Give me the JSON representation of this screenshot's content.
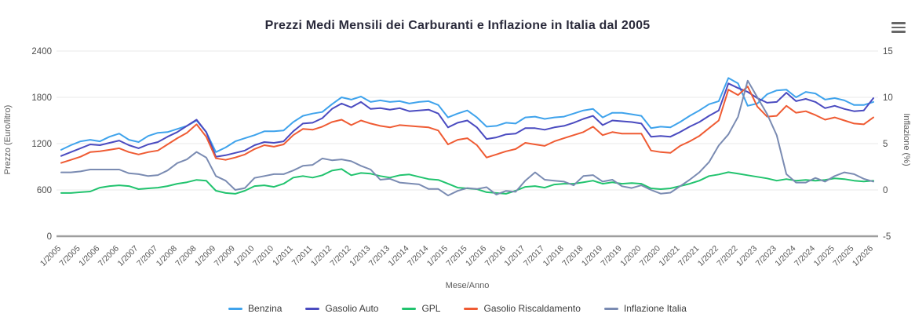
{
  "header": {
    "title": "Prezzi Medi Mensili dei Carburanti e Inflazione in Italia dal 2005",
    "menu_icon": "hamburger-icon"
  },
  "chart_data": {
    "type": "line",
    "title": "Prezzi Medi Mensili dei Carburanti e Inflazione in Italia dal 2005",
    "grid": true,
    "legend_position": "bottom",
    "x_axis": {
      "title": "Mese/Anno",
      "tick_labels": [
        "1/2005",
        "7/2005",
        "1/2006",
        "7/2006",
        "1/2007",
        "7/2007",
        "1/2008",
        "7/2008",
        "1/2009",
        "7/2009",
        "1/2010",
        "7/2010",
        "1/2011",
        "7/2011",
        "1/2012",
        "7/2012",
        "1/2013",
        "7/2013",
        "1/2014",
        "7/2014",
        "1/2015",
        "7/2015",
        "1/2016",
        "7/2016",
        "1/2017",
        "7/2017",
        "1/2018",
        "7/2018",
        "1/2019",
        "7/2019",
        "1/2020",
        "7/2020",
        "1/2021",
        "7/2021",
        "1/2022",
        "7/2022",
        "1/2023",
        "7/2023",
        "1/2024",
        "7/2024",
        "1/2025",
        "7/2025",
        "1/2026"
      ]
    },
    "y_axis_left": {
      "title": "Prezzo (Euro/litro)",
      "ticks": [
        0,
        600,
        1200,
        1800,
        2400
      ],
      "range": [
        0,
        2400
      ]
    },
    "y_axis_right": {
      "title": "Inflazione (%)",
      "ticks": [
        -5,
        0,
        5,
        10,
        15
      ],
      "range": [
        -5,
        15
      ]
    },
    "categories": [
      "1/2005",
      "4/2005",
      "7/2005",
      "10/2005",
      "1/2006",
      "4/2006",
      "7/2006",
      "10/2006",
      "1/2007",
      "4/2007",
      "7/2007",
      "10/2007",
      "1/2008",
      "4/2008",
      "7/2008",
      "10/2008",
      "1/2009",
      "4/2009",
      "7/2009",
      "10/2009",
      "1/2010",
      "4/2010",
      "7/2010",
      "10/2010",
      "1/2011",
      "4/2011",
      "7/2011",
      "10/2011",
      "1/2012",
      "4/2012",
      "7/2012",
      "10/2012",
      "1/2013",
      "4/2013",
      "7/2013",
      "10/2013",
      "1/2014",
      "4/2014",
      "7/2014",
      "10/2014",
      "1/2015",
      "4/2015",
      "7/2015",
      "10/2015",
      "1/2016",
      "4/2016",
      "7/2016",
      "10/2016",
      "1/2017",
      "4/2017",
      "7/2017",
      "10/2017",
      "1/2018",
      "4/2018",
      "7/2018",
      "10/2018",
      "1/2019",
      "4/2019",
      "7/2019",
      "10/2019",
      "1/2020",
      "4/2020",
      "7/2020",
      "10/2020",
      "1/2021",
      "4/2021",
      "7/2021",
      "10/2021",
      "1/2022",
      "4/2022",
      "7/2022",
      "10/2022",
      "1/2023",
      "4/2023",
      "7/2023",
      "10/2023",
      "1/2024",
      "4/2024",
      "7/2024",
      "10/2024",
      "1/2025",
      "4/2025",
      "7/2025",
      "10/2025",
      "1/2026"
    ],
    "series": [
      {
        "name": "Benzina",
        "color": "#3FA3EC",
        "axis": "left",
        "values": [
          1120,
          1180,
          1230,
          1250,
          1230,
          1290,
          1330,
          1250,
          1220,
          1300,
          1340,
          1350,
          1390,
          1430,
          1500,
          1350,
          1090,
          1150,
          1230,
          1270,
          1310,
          1360,
          1360,
          1370,
          1480,
          1560,
          1590,
          1610,
          1710,
          1800,
          1770,
          1810,
          1740,
          1760,
          1740,
          1750,
          1720,
          1740,
          1750,
          1700,
          1540,
          1590,
          1630,
          1540,
          1420,
          1430,
          1470,
          1460,
          1540,
          1550,
          1520,
          1540,
          1550,
          1590,
          1630,
          1650,
          1540,
          1600,
          1600,
          1580,
          1560,
          1400,
          1420,
          1410,
          1480,
          1560,
          1630,
          1710,
          1750,
          2050,
          1980,
          1690,
          1720,
          1840,
          1890,
          1900,
          1800,
          1870,
          1850,
          1770,
          1790,
          1760,
          1700,
          1700,
          1740
        ]
      },
      {
        "name": "Gasolio Auto",
        "color": "#4A4BC0",
        "axis": "left",
        "values": [
          1040,
          1090,
          1140,
          1190,
          1180,
          1210,
          1240,
          1180,
          1140,
          1190,
          1220,
          1290,
          1350,
          1430,
          1510,
          1350,
          1030,
          1050,
          1080,
          1110,
          1180,
          1220,
          1210,
          1230,
          1360,
          1460,
          1470,
          1530,
          1650,
          1720,
          1670,
          1740,
          1650,
          1660,
          1640,
          1660,
          1620,
          1630,
          1640,
          1590,
          1410,
          1470,
          1500,
          1410,
          1260,
          1280,
          1320,
          1330,
          1400,
          1400,
          1380,
          1410,
          1430,
          1470,
          1520,
          1560,
          1440,
          1500,
          1490,
          1480,
          1460,
          1290,
          1300,
          1290,
          1350,
          1420,
          1480,
          1560,
          1630,
          1980,
          1920,
          1870,
          1790,
          1730,
          1740,
          1860,
          1750,
          1780,
          1740,
          1660,
          1690,
          1650,
          1620,
          1630,
          1790
        ]
      },
      {
        "name": "GPL",
        "color": "#21C36E",
        "axis": "left",
        "values": [
          560,
          560,
          570,
          580,
          630,
          650,
          660,
          650,
          610,
          620,
          630,
          650,
          680,
          700,
          730,
          720,
          590,
          560,
          550,
          590,
          650,
          660,
          640,
          680,
          760,
          780,
          760,
          790,
          850,
          870,
          790,
          820,
          810,
          780,
          760,
          790,
          800,
          770,
          740,
          730,
          680,
          630,
          620,
          610,
          570,
          560,
          550,
          590,
          640,
          650,
          630,
          670,
          680,
          680,
          700,
          720,
          680,
          700,
          680,
          690,
          680,
          620,
          610,
          620,
          650,
          680,
          720,
          780,
          800,
          830,
          810,
          790,
          770,
          750,
          720,
          740,
          720,
          730,
          720,
          730,
          750,
          740,
          720,
          710,
          720
        ]
      },
      {
        "name": "Gasolio Riscaldamento",
        "color": "#EF5B33",
        "axis": "left",
        "values": [
          950,
          990,
          1030,
          1090,
          1100,
          1120,
          1140,
          1090,
          1060,
          1090,
          1110,
          1190,
          1270,
          1340,
          1450,
          1290,
          1010,
          990,
          1020,
          1060,
          1130,
          1180,
          1160,
          1190,
          1310,
          1390,
          1380,
          1420,
          1480,
          1510,
          1440,
          1500,
          1460,
          1430,
          1410,
          1440,
          1430,
          1420,
          1410,
          1370,
          1190,
          1250,
          1270,
          1180,
          1020,
          1060,
          1100,
          1130,
          1210,
          1190,
          1170,
          1230,
          1270,
          1310,
          1350,
          1420,
          1310,
          1350,
          1330,
          1330,
          1330,
          1110,
          1090,
          1080,
          1170,
          1230,
          1300,
          1400,
          1500,
          1900,
          1830,
          1940,
          1680,
          1550,
          1560,
          1690,
          1600,
          1620,
          1570,
          1510,
          1540,
          1500,
          1460,
          1450,
          1540
        ]
      },
      {
        "name": "Inflazione Italia",
        "color": "#7A8BB2",
        "axis": "right",
        "values": [
          1.9,
          1.9,
          2.0,
          2.2,
          2.2,
          2.2,
          2.2,
          1.8,
          1.7,
          1.5,
          1.6,
          2.1,
          2.9,
          3.3,
          4.1,
          3.5,
          1.5,
          1.0,
          0.0,
          0.2,
          1.3,
          1.5,
          1.7,
          1.7,
          2.1,
          2.6,
          2.7,
          3.4,
          3.2,
          3.3,
          3.1,
          2.6,
          2.2,
          1.1,
          1.2,
          0.8,
          0.7,
          0.6,
          0.1,
          0.1,
          -0.6,
          -0.1,
          0.2,
          0.1,
          0.3,
          -0.5,
          -0.1,
          -0.2,
          1.0,
          1.9,
          1.1,
          1.0,
          0.9,
          0.5,
          1.5,
          1.6,
          0.9,
          1.1,
          0.4,
          0.2,
          0.5,
          0.0,
          -0.4,
          -0.3,
          0.4,
          1.1,
          1.9,
          3.0,
          4.8,
          6.0,
          7.9,
          11.8,
          10.0,
          8.2,
          5.9,
          1.7,
          0.8,
          0.8,
          1.3,
          0.9,
          1.5,
          1.9,
          1.7,
          1.2,
          0.9
        ]
      }
    ]
  },
  "colors": {
    "grid": "#e8e8e8",
    "axis_line": "#9e9e9e",
    "tick_text": "#4d4d4d",
    "title_text": "#2a2a3b"
  }
}
